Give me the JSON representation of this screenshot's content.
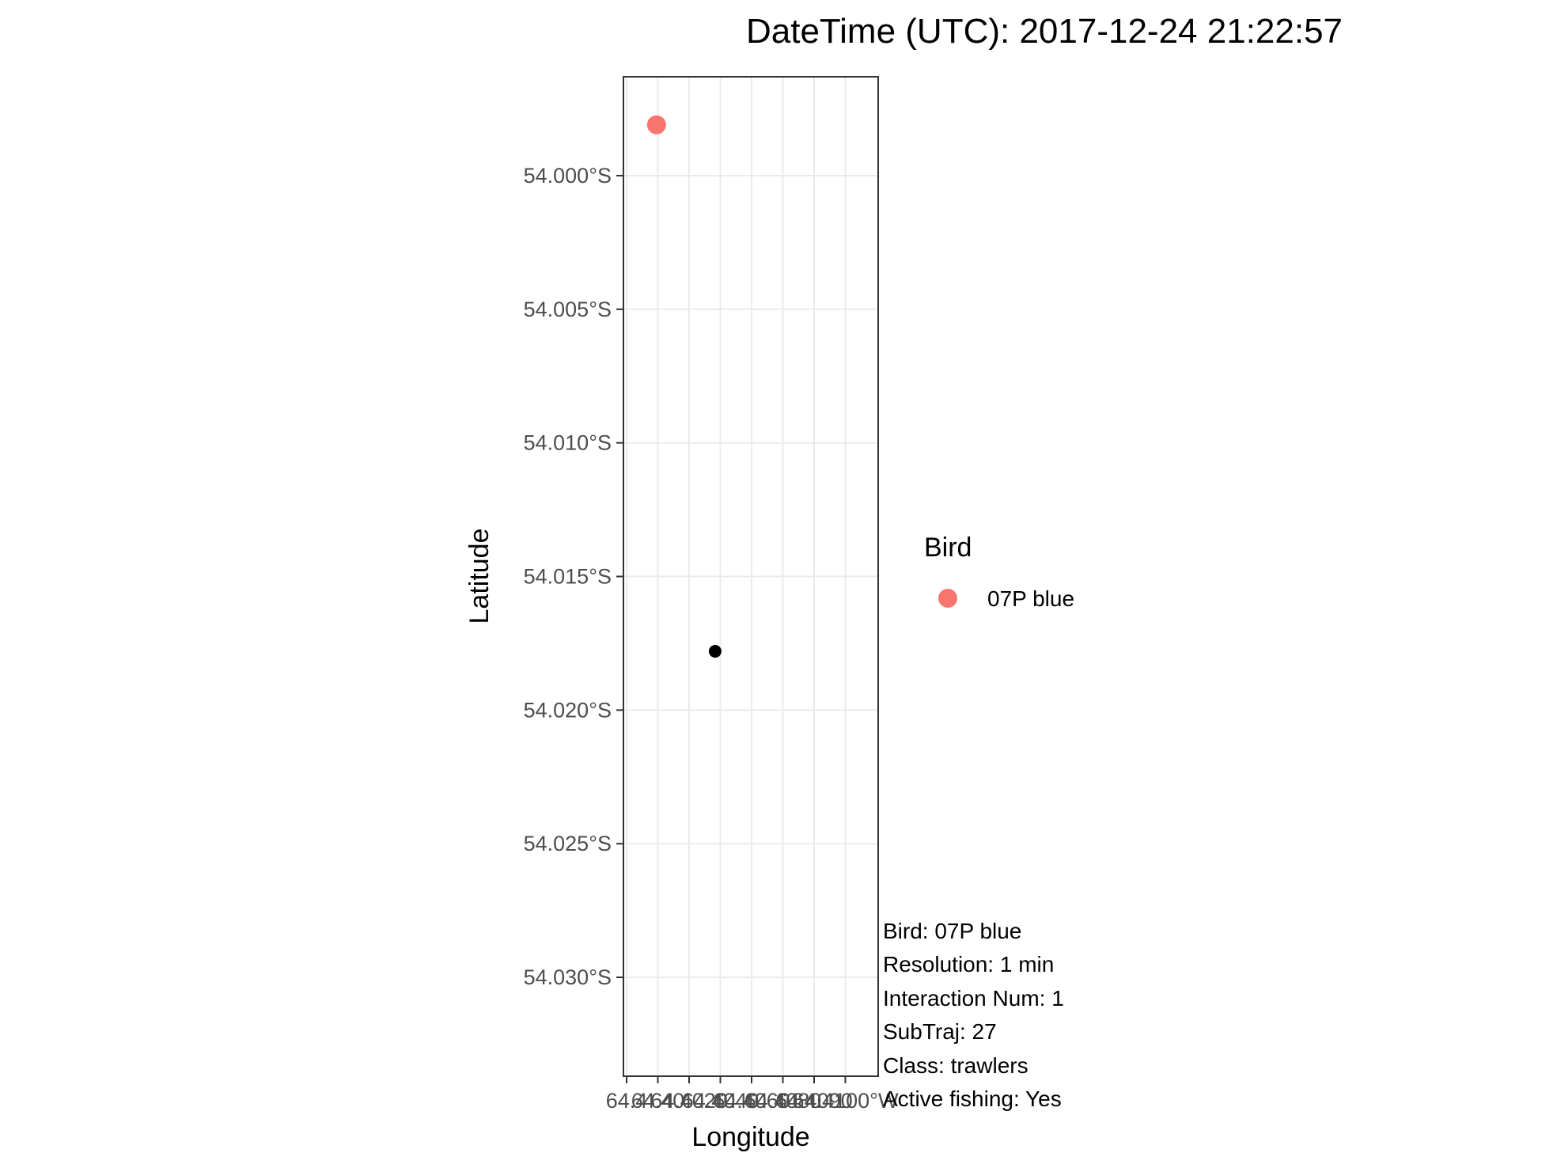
{
  "chart_data": {
    "type": "scatter",
    "title": "DateTime (UTC): 2017-12-24 21:22:57",
    "xlabel": "Longitude",
    "ylabel": "Latitude",
    "y_ticks": [
      "54.000°S",
      "54.005°S",
      "54.010°S",
      "54.015°S",
      "54.020°S",
      "54.025°S",
      "54.030°S"
    ],
    "y_tick_values": [
      -54.0,
      -54.005,
      -54.01,
      -54.015,
      -54.02,
      -54.025,
      -54.03
    ],
    "ylim": [
      -54.0337,
      -53.9963
    ],
    "x_tick_labels": [
      "64.4",
      "64.40",
      "64.4020",
      "64.4040",
      "64.4060",
      "64.4080",
      "64.4090",
      "64.4100°W"
    ],
    "x_tick_count": 8,
    "grid": true,
    "legend": {
      "title": "Bird",
      "placement": "right",
      "entries": [
        {
          "label": "07P blue",
          "color": "#F8766D"
        }
      ]
    },
    "series": [
      {
        "name": "07P blue",
        "color": "#F8766D",
        "points": [
          {
            "x_frac": 0.13,
            "y": -53.9981
          }
        ]
      },
      {
        "color": "#000000",
        "points": [
          {
            "x_frac": 0.36,
            "y": -54.0178
          }
        ]
      }
    ],
    "annotations": [
      "Bird: 07P blue",
      "Resolution: 1 min",
      "Interaction Num: 1",
      "SubTraj: 27",
      "Class: trawlers",
      "Active fishing: Yes"
    ]
  }
}
